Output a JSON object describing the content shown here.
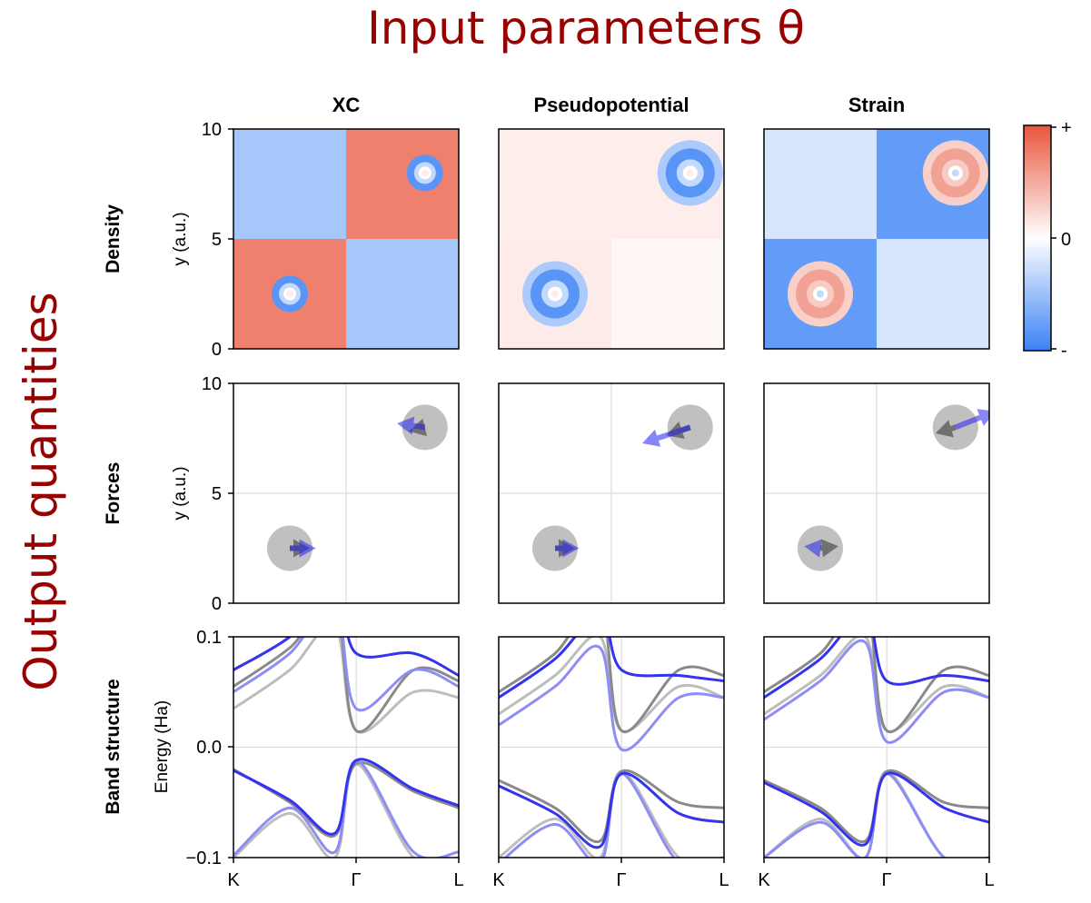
{
  "figure": {
    "top_title": "Input parameters θ",
    "left_title": "Output quantities",
    "columns": [
      "XC",
      "Pseudopotential",
      "Strain"
    ],
    "rows": [
      "Density",
      "Forces",
      "Band structure"
    ],
    "colorbar": {
      "labels": [
        "+",
        "0",
        "-"
      ],
      "colors": {
        "neg": "#3b82f6",
        "mid": "#ffffff",
        "pos": "#e8553c"
      }
    }
  },
  "chart_data": [
    {
      "type": "heatmap",
      "row": "Density",
      "ylabel": "y (a.u.)",
      "yticks": [
        "0",
        "5",
        "10"
      ],
      "ylim": [
        0,
        10
      ],
      "xlim": [
        0,
        10
      ],
      "panels": [
        {
          "column": "XC",
          "atoms": [
            {
              "x": 2.5,
              "y": 2.5
            },
            {
              "x": 8.5,
              "y": 8.0
            }
          ],
          "quadrants": {
            "bottom_left": 0.75,
            "top_left": -0.45,
            "bottom_right": -0.45,
            "top_right": 0.75
          }
        },
        {
          "column": "Pseudopotential",
          "atoms": [
            {
              "x": 2.5,
              "y": 2.5
            },
            {
              "x": 8.5,
              "y": 8.0
            }
          ],
          "quadrants": {
            "bottom_left": 0.12,
            "top_left": 0.1,
            "bottom_right": 0.05,
            "top_right": 0.1
          }
        },
        {
          "column": "Strain",
          "atoms": [
            {
              "x": 2.5,
              "y": 2.5
            },
            {
              "x": 8.5,
              "y": 8.0
            }
          ],
          "quadrants": {
            "bottom_left": -0.8,
            "top_left": -0.2,
            "bottom_right": -0.2,
            "top_right": -0.8
          }
        }
      ]
    },
    {
      "type": "scatter",
      "row": "Forces",
      "ylabel": "y (a.u.)",
      "yticks": [
        "0",
        "5",
        "10"
      ],
      "ylim": [
        0,
        10
      ],
      "xlim": [
        0,
        10
      ],
      "grid": true,
      "panels": [
        {
          "column": "XC",
          "atoms": [
            {
              "x": 2.5,
              "y": 2.5,
              "ref": [
                1.0,
                0.0
              ],
              "pert": [
                1.3,
                0.0
              ]
            },
            {
              "x": 8.5,
              "y": 8.0,
              "ref": [
                -0.8,
                -0.2
              ],
              "pert": [
                -1.4,
                0.2
              ]
            }
          ]
        },
        {
          "column": "Pseudopotential",
          "atoms": [
            {
              "x": 2.5,
              "y": 2.5,
              "ref": [
                1.0,
                0.0
              ],
              "pert": [
                1.2,
                0.0
              ]
            },
            {
              "x": 8.5,
              "y": 8.0,
              "ref": [
                -1.2,
                -0.4
              ],
              "pert": [
                -2.4,
                -0.8
              ]
            }
          ]
        },
        {
          "column": "Strain",
          "atoms": [
            {
              "x": 2.5,
              "y": 2.5,
              "ref": [
                0.9,
                0.1
              ],
              "pert": [
                -0.8,
                0.1
              ]
            },
            {
              "x": 8.5,
              "y": 8.0,
              "ref": [
                -1.0,
                -0.3
              ],
              "pert": [
                2.0,
                0.8
              ]
            }
          ]
        }
      ]
    },
    {
      "type": "line",
      "row": "Band structure",
      "ylabel": "Energy (Ha)",
      "yticks": [
        "−0.1",
        "0.0",
        "0.1"
      ],
      "ylim": [
        -0.1,
        0.1
      ],
      "xticks": [
        "K",
        "Γ",
        "L"
      ],
      "panels": [
        {
          "column": "XC",
          "bands": {
            "reference": [
              [
                -0.1,
                -0.06,
                -0.1,
                -0.015,
                -0.1,
                -0.1
              ],
              [
                -0.02,
                -0.05,
                -0.08,
                -0.015,
                -0.04,
                -0.055
              ],
              [
                0.035,
                0.07,
                0.11,
                0.015,
                0.05,
                0.045
              ],
              [
                0.055,
                0.09,
                0.13,
                0.015,
                0.07,
                0.06
              ]
            ],
            "perturbed": [
              [
                -0.098,
                -0.055,
                -0.095,
                -0.012,
                -0.095,
                -0.095
              ],
              [
                -0.021,
                -0.048,
                -0.078,
                -0.012,
                -0.038,
                -0.053
              ],
              [
                0.05,
                0.085,
                0.13,
                0.035,
                0.07,
                0.055
              ],
              [
                0.07,
                0.1,
                0.14,
                0.085,
                0.085,
                0.065
              ]
            ]
          }
        },
        {
          "column": "Pseudopotential",
          "bands": {
            "reference": [
              [
                -0.1,
                -0.065,
                -0.1,
                -0.022,
                -0.1,
                -0.1
              ],
              [
                -0.03,
                -0.055,
                -0.085,
                -0.022,
                -0.05,
                -0.055
              ],
              [
                0.03,
                0.065,
                0.1,
                0.015,
                0.055,
                0.045
              ],
              [
                0.05,
                0.085,
                0.13,
                0.015,
                0.07,
                0.065
              ]
            ],
            "perturbed": [
              [
                -0.105,
                -0.07,
                -0.105,
                -0.024,
                -0.105,
                -0.1
              ],
              [
                -0.035,
                -0.06,
                -0.09,
                -0.024,
                -0.06,
                -0.068
              ],
              [
                0.02,
                0.055,
                0.09,
                -0.002,
                0.045,
                0.045
              ],
              [
                0.045,
                0.08,
                0.12,
                0.07,
                0.065,
                0.06
              ]
            ]
          }
        },
        {
          "column": "Strain",
          "bands": {
            "reference": [
              [
                -0.1,
                -0.065,
                -0.1,
                -0.022,
                -0.1,
                -0.1
              ],
              [
                -0.03,
                -0.055,
                -0.085,
                -0.022,
                -0.05,
                -0.055
              ],
              [
                0.03,
                0.065,
                0.1,
                0.015,
                0.055,
                0.045
              ],
              [
                0.05,
                0.085,
                0.13,
                0.015,
                0.07,
                0.065
              ]
            ],
            "perturbed": [
              [
                -0.1,
                -0.068,
                -0.1,
                -0.024,
                -0.1,
                -0.1
              ],
              [
                -0.032,
                -0.058,
                -0.088,
                -0.024,
                -0.055,
                -0.068
              ],
              [
                0.025,
                0.06,
                0.095,
                0.005,
                0.05,
                0.045
              ],
              [
                0.045,
                0.08,
                0.12,
                0.06,
                0.065,
                0.06
              ]
            ]
          }
        }
      ]
    }
  ]
}
